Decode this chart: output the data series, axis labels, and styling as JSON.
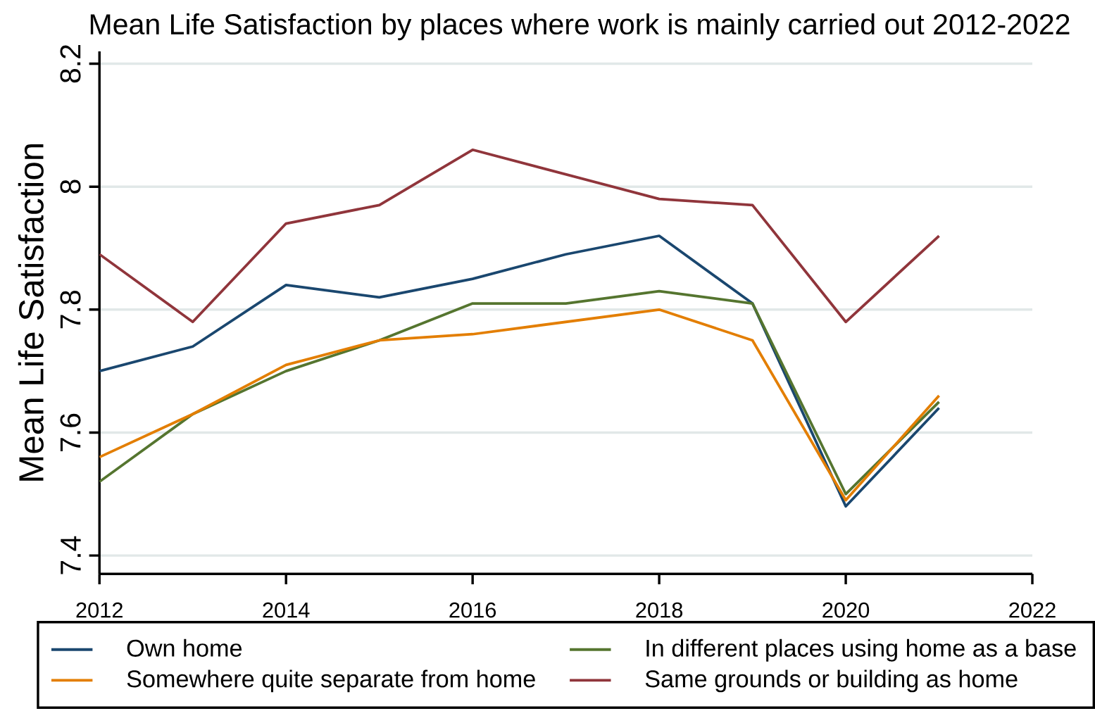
{
  "chart_data": {
    "type": "line",
    "title": "Mean Life Satisfaction by places where work is mainly carried out  2012-2022",
    "ylabel": "Mean Life  Satisfaction",
    "x": [
      2012,
      2013,
      2014,
      2015,
      2016,
      2017,
      2018,
      2019,
      2020,
      2021
    ],
    "series": [
      {
        "name": "Own home",
        "color": "#1a476f",
        "values": [
          7.7,
          7.74,
          7.84,
          7.82,
          7.85,
          7.89,
          7.92,
          7.81,
          7.48,
          7.64
        ]
      },
      {
        "name": "In different places using home as a base",
        "color": "#55752f",
        "values": [
          7.52,
          7.63,
          7.7,
          7.75,
          7.81,
          7.81,
          7.83,
          7.81,
          7.5,
          7.65
        ]
      },
      {
        "name": "Somewhere quite separate from home",
        "color": "#e37e00",
        "values": [
          7.56,
          7.63,
          7.71,
          7.75,
          7.76,
          7.78,
          7.8,
          7.75,
          7.49,
          7.66
        ]
      },
      {
        "name": "Same grounds or building as home",
        "color": "#90353b",
        "values": [
          7.89,
          7.78,
          7.94,
          7.97,
          8.06,
          8.02,
          7.98,
          7.97,
          7.78,
          7.92
        ]
      }
    ],
    "xlim": [
      2012,
      2022
    ],
    "xticks": [
      2012,
      2014,
      2016,
      2018,
      2020,
      2022
    ],
    "ylim": [
      7.37,
      8.22
    ],
    "yticks": [
      7.4,
      7.6,
      7.8,
      8,
      8.2
    ],
    "grid": "y",
    "legend": "bottom",
    "marker": "none",
    "line_style": "solid"
  }
}
